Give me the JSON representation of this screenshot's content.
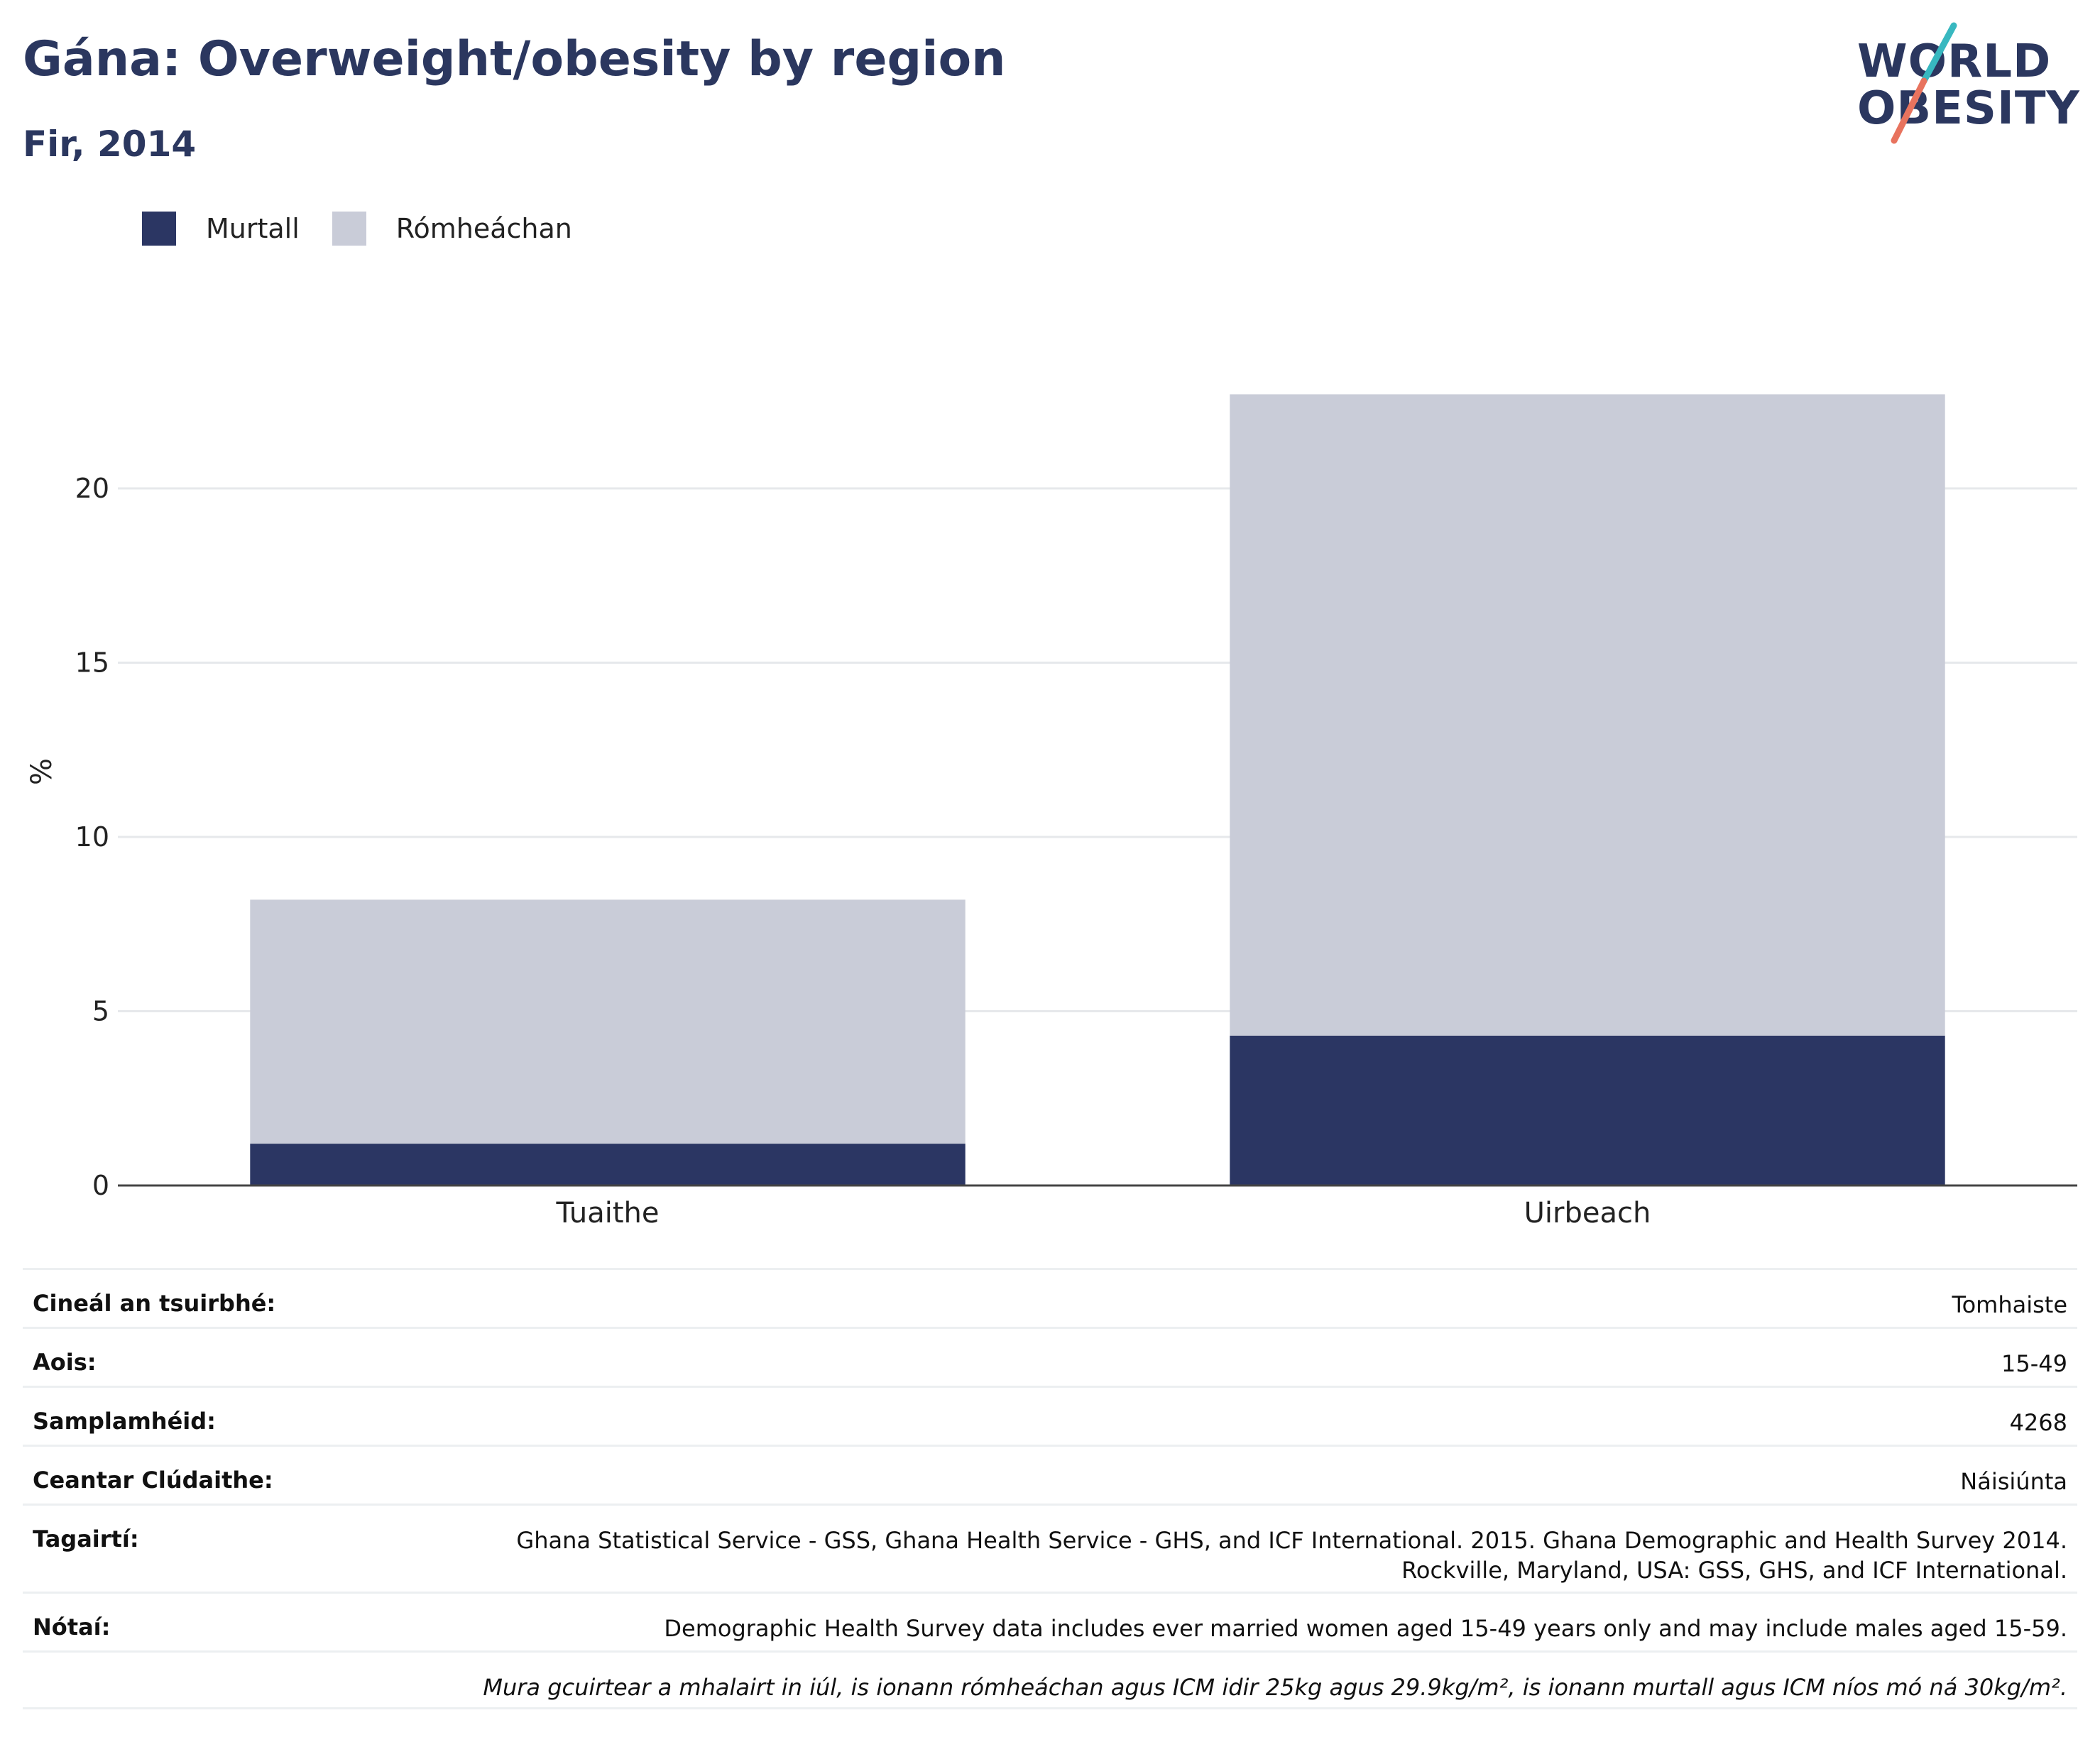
{
  "header": {
    "title": "Gána: Overweight/obesity by region",
    "subtitle": "Fir, 2014"
  },
  "logo": {
    "line1": "WORLD",
    "line2": "OBESITY"
  },
  "legend": [
    {
      "label": "Murtall",
      "color": "#2b3663"
    },
    {
      "label": "Rómheáchan",
      "color": "#c9ccd8"
    }
  ],
  "chart_data": {
    "type": "bar",
    "stacked": true,
    "categories": [
      "Tuaithe",
      "Uirbeach"
    ],
    "series": [
      {
        "name": "Murtall",
        "values": [
          1.2,
          4.3
        ],
        "color": "#2b3663"
      },
      {
        "name": "Rómheáchan",
        "values": [
          7.0,
          18.4
        ],
        "color": "#c9ccd8"
      }
    ],
    "ylabel": "%",
    "xlabel": "",
    "ylim": [
      0,
      24
    ],
    "yticks": [
      0,
      5,
      10,
      15,
      20
    ],
    "grid": true,
    "legend_position": "top-left"
  },
  "meta": [
    {
      "key": "Cineál an tsuirbhé:",
      "value": "Tomhaiste"
    },
    {
      "key": "Aois:",
      "value": "15-49"
    },
    {
      "key": "Samplamhéid:",
      "value": "4268"
    },
    {
      "key": "Ceantar Clúdaithe:",
      "value": "Náisiúnta"
    },
    {
      "key": "Tagairtí:",
      "value_line1": "Ghana Statistical Service - GSS, Ghana Health Service - GHS, and ICF International. 2015. Ghana Demographic and Health Survey 2014.",
      "value_line2": "Rockville, Maryland, USA: GSS, GHS, and ICF International."
    },
    {
      "key": "Nótaí:",
      "value": "Demographic Health Survey data includes ever married women aged 15-49 years only and may include males aged 15-59."
    },
    {
      "key": "",
      "value": "Mura gcuirtear a mhalairt in iúl, is ionann rómheáchan agus ICM idir 25kg agus 29.9kg/m², is ionann murtall agus ICM níos mó ná 30kg/m²."
    }
  ]
}
